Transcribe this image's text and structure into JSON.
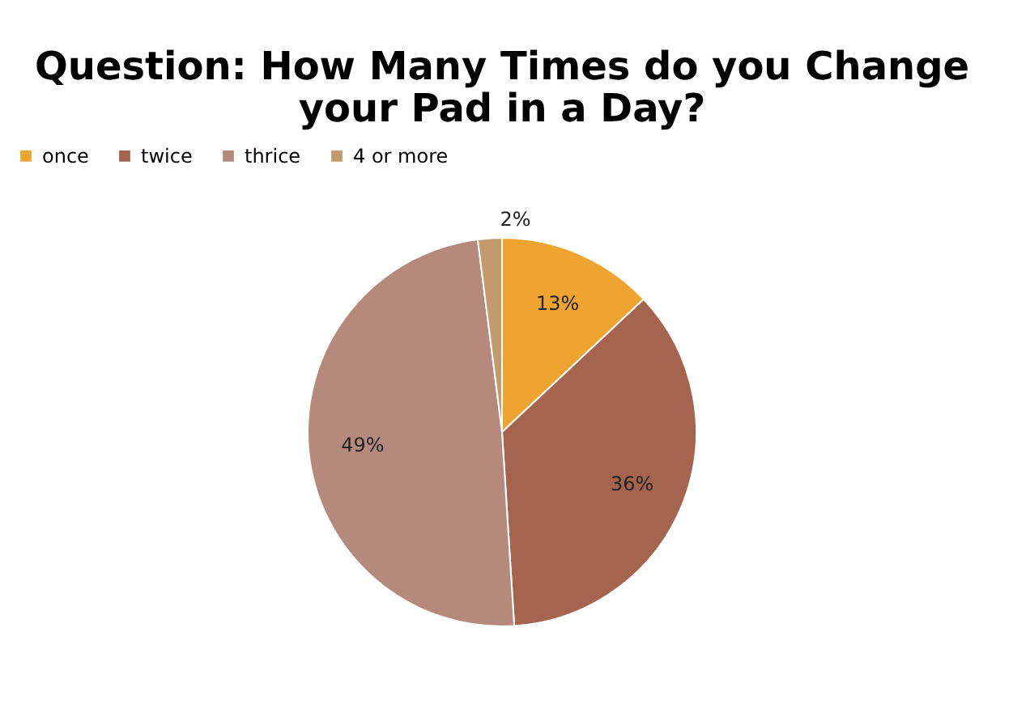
{
  "chart_data": {
    "type": "pie",
    "title": "Question: How Many Times do you Change your Pad in a Day?",
    "categories": [
      "once",
      "twice",
      "thrice",
      "4 or more"
    ],
    "values": [
      13,
      36,
      49,
      2
    ],
    "value_labels": [
      "13%",
      "36%",
      "49%",
      "2%"
    ],
    "colors": [
      "#f0a430",
      "#a4644e",
      "#b58a7d",
      "#c39a6b"
    ],
    "legend": "top"
  }
}
